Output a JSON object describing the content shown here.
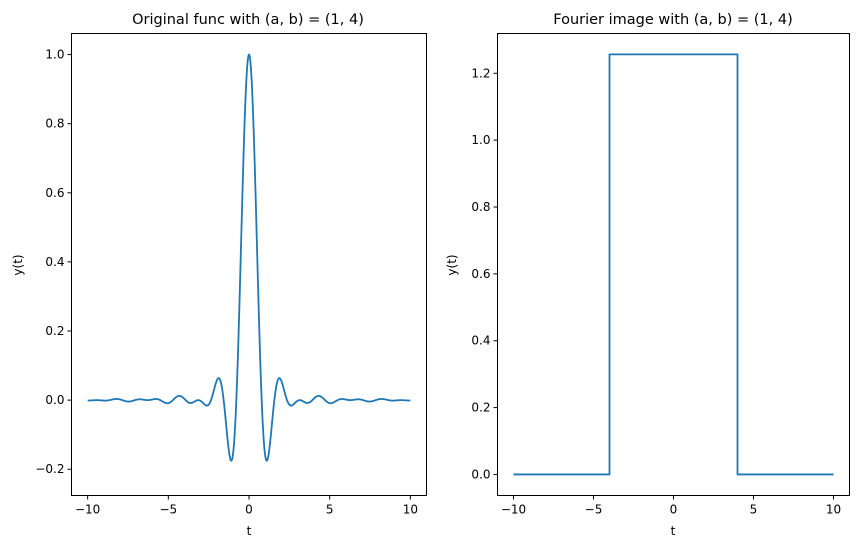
{
  "chart_data": [
    {
      "type": "line",
      "title": "Original func with (a, b) = (1, 4)",
      "xlabel": "t",
      "ylabel": "y(t)",
      "xlim": [
        -11,
        11
      ],
      "ylim": [
        -0.276,
        1.061
      ],
      "xticks": [
        -10,
        -5,
        0,
        5,
        10
      ],
      "xtick_labels": [
        "−10",
        "−5",
        "0",
        "5",
        "10"
      ],
      "yticks": [
        -0.2,
        0.0,
        0.2,
        0.4,
        0.6,
        0.8,
        1.0
      ],
      "ytick_labels": [
        "−0.2",
        "0.0",
        "0.2",
        "0.4",
        "0.6",
        "0.8",
        "1.0"
      ],
      "grid": false,
      "series": [
        {
          "color": "#1f77b4",
          "formula": "y(t) = sin(a*t)*sin(b*t) / (a*b*t^2), y(0) = 1",
          "params": {
            "a": 1,
            "b": 4
          },
          "x_range": [
            -10,
            10
          ]
        }
      ]
    },
    {
      "type": "line",
      "title": "Fourier image with (a, b) = (1, 4)",
      "xlabel": "t",
      "ylabel": "y(t)",
      "xlim": [
        -11,
        11
      ],
      "ylim": [
        -0.063,
        1.319
      ],
      "xticks": [
        -10,
        -5,
        0,
        5,
        10
      ],
      "xtick_labels": [
        "−10",
        "−5",
        "0",
        "5",
        "10"
      ],
      "yticks": [
        0.0,
        0.2,
        0.4,
        0.6,
        0.8,
        1.0,
        1.2
      ],
      "ytick_labels": [
        "0.0",
        "0.2",
        "0.4",
        "0.6",
        "0.8",
        "1.0",
        "1.2"
      ],
      "grid": false,
      "series": [
        {
          "color": "#1f77b4",
          "x": [
            -10,
            -4,
            -4,
            4,
            4,
            10
          ],
          "y": [
            0,
            0,
            1.2566,
            1.2566,
            0,
            0
          ]
        }
      ]
    }
  ]
}
